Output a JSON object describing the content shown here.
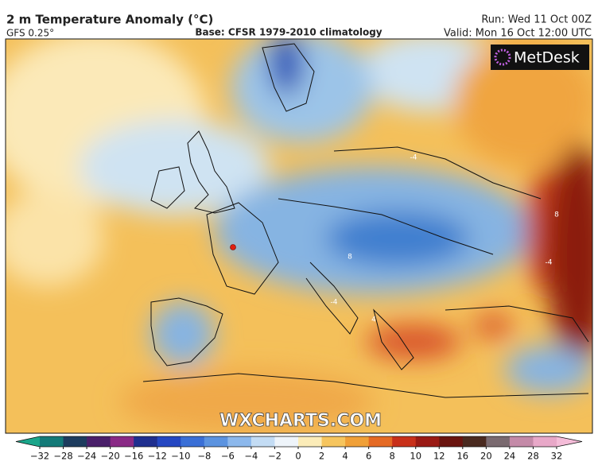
{
  "header": {
    "title": "2 m Temperature Anomaly (°C)",
    "model": "GFS 0.25°",
    "base": "Base: CFSR 1979-2010 climatology",
    "run": "Run: Wed 11 Oct 00Z",
    "valid": "Valid: Mon 16 Oct 12:00 UTC"
  },
  "map": {
    "logo": "MetDesk",
    "watermark": "WXCHARTS.COM",
    "contour_labels": [
      "-4",
      "-4",
      "8",
      "4",
      "-4",
      "8"
    ]
  },
  "colorbar": {
    "ticks": [
      {
        "value": -32,
        "label": "−32"
      },
      {
        "value": -28,
        "label": "−28"
      },
      {
        "value": -24,
        "label": "−24"
      },
      {
        "value": -20,
        "label": "−20"
      },
      {
        "value": -16,
        "label": "−16"
      },
      {
        "value": -12,
        "label": "−12"
      },
      {
        "value": -10,
        "label": "−10"
      },
      {
        "value": -8,
        "label": "−8"
      },
      {
        "value": -6,
        "label": "−6"
      },
      {
        "value": -4,
        "label": "−4"
      },
      {
        "value": -2,
        "label": "−2"
      },
      0,
      2,
      4,
      6,
      8,
      10,
      12,
      16,
      20,
      24,
      28,
      32
    ],
    "colors": [
      "#1aa58a",
      "#137a78",
      "#1d3c5e",
      "#4a1f6a",
      "#8a2a86",
      "#1f2f8f",
      "#2447c2",
      "#3a6fd6",
      "#5b93e0",
      "#8cb8ec",
      "#c3dcf4",
      "#eef4fa",
      "#fbecb8",
      "#f6c55e",
      "#f0a038",
      "#e56a24",
      "#c8301a",
      "#9a1a14",
      "#6a1410",
      "#4a2a20",
      "#7a6a70",
      "#c48aa8",
      "#e8a8c8",
      "#f4bcd8"
    ]
  }
}
